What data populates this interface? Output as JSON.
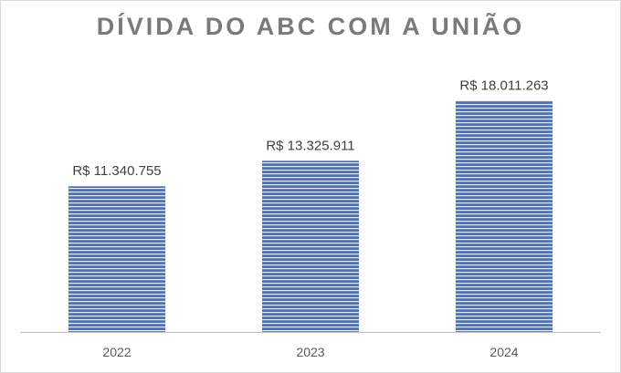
{
  "chart_data": {
    "type": "bar",
    "title": "DÍVIDA DO ABC COM A UNIÃO",
    "categories": [
      "2022",
      "2023",
      "2024"
    ],
    "values": [
      11340755,
      13325911,
      18011263
    ],
    "value_labels": [
      "R$ 11.340.755",
      "R$ 13.325.911",
      "R$ 18.011.263"
    ],
    "ylim": [
      0,
      23000000
    ],
    "grid": false,
    "colors": {
      "bar": "#4472c4",
      "bar_stripe": "#ffffff",
      "axis": "#bfbfbf",
      "title": "#7a7a7a"
    }
  }
}
